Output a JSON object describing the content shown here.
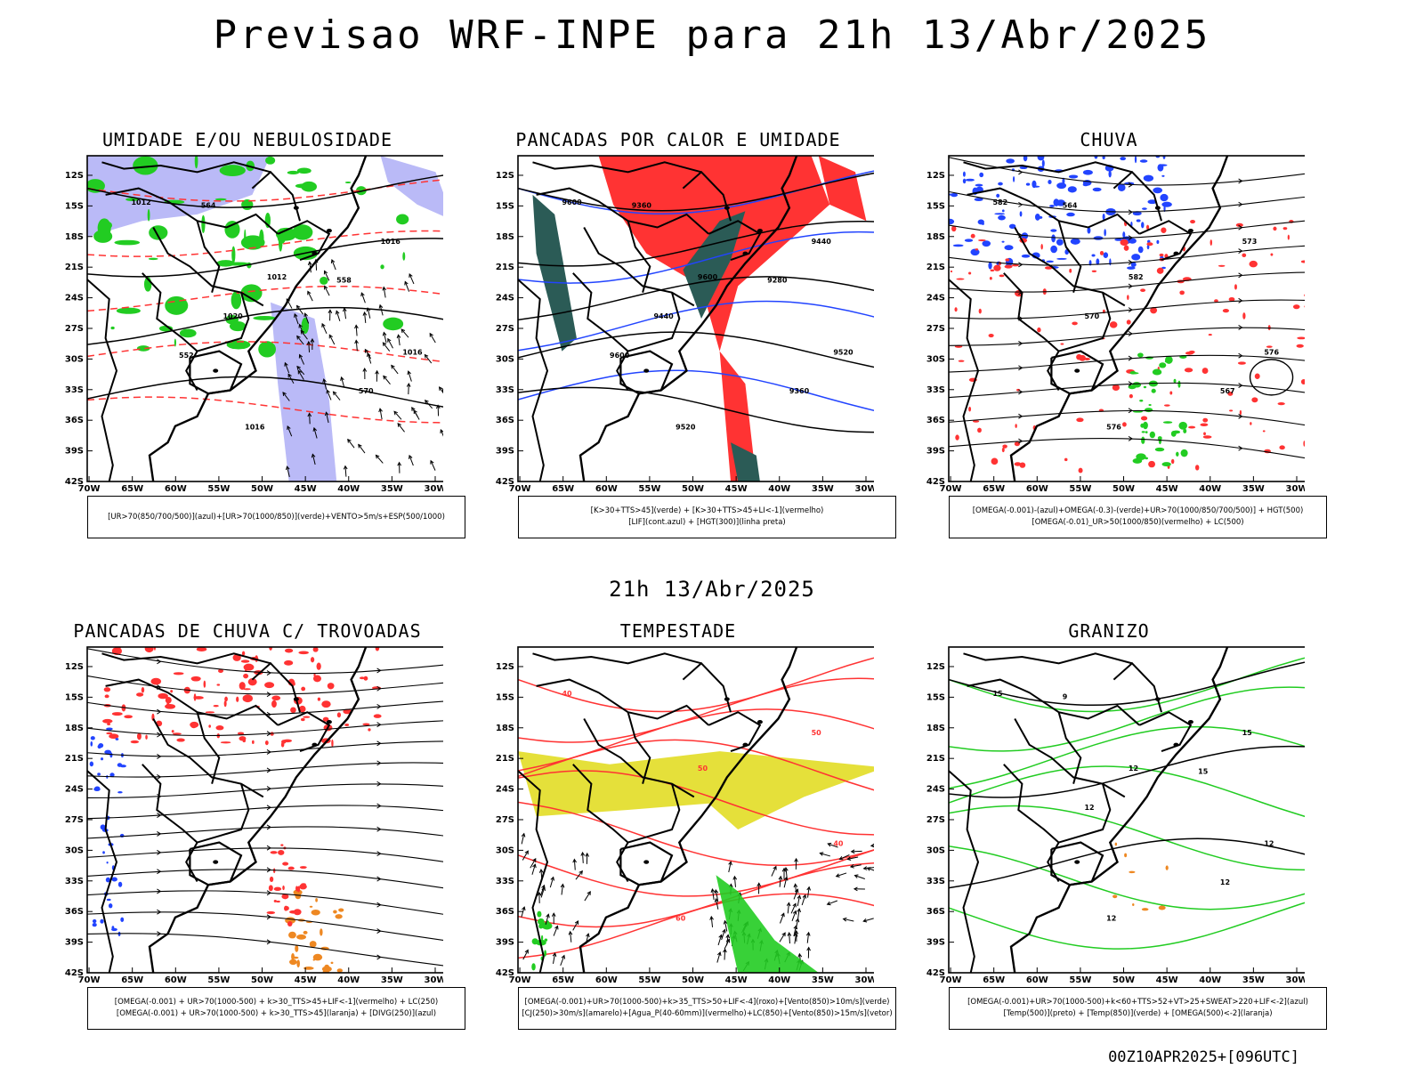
{
  "header": {
    "title": "Previsao WRF-INPE  para 21h 13/Abr/2025"
  },
  "middle": {
    "title": "21h 13/Abr/2025"
  },
  "footer": {
    "run_label": "00Z10APR2025+[096UTC]"
  },
  "axes": {
    "lat_labels": [
      "12S",
      "15S",
      "18S",
      "21S",
      "24S",
      "27S",
      "30S",
      "33S",
      "36S",
      "39S",
      "42S"
    ],
    "lon_labels": [
      "70W",
      "65W",
      "60W",
      "55W",
      "50W",
      "45W",
      "40W",
      "35W",
      "30W"
    ]
  },
  "colors": {
    "humidity_blue": "#a9a9f5",
    "green": "#22cc22",
    "red": "#ff3333",
    "dark_teal": "#2b5b56",
    "blue_line": "#2244ff",
    "yellow": "#e5e03a",
    "orange": "#ee8822"
  },
  "panels": [
    {
      "id": "umidade",
      "title": "UMIDADE E/OU NEBULOSIDADE",
      "legend": [
        "[UR>70(850/700/500)](azul)+[UR>70(1000/850)](verde)+VENTO>5m/s+ESP(500/1000)"
      ],
      "contour_labels": [
        "1012",
        "1012",
        "1016",
        "1016",
        "1016",
        "1020",
        "570",
        "564",
        "558",
        "552"
      ]
    },
    {
      "id": "pancadas_calor",
      "title": "PANCADAS POR CALOR E UMIDADE",
      "legend": [
        "[K>30+TTS>45](verde) + [K>30+TTS>45+LI<-1](vermelho)",
        "[LIF](cont.azul) + [HGT(300)](linha preta)"
      ],
      "contour_labels": [
        "9600",
        "9600",
        "9520",
        "9520",
        "9440",
        "9440",
        "9360",
        "9360",
        "9280",
        "9600"
      ]
    },
    {
      "id": "chuva",
      "title": "CHUVA",
      "legend": [
        "[OMEGA(-0.001)-(azul)+OMEGA(-0.3)-(verde)+UR>70(1000/850/700/500)] + HGT(500)",
        "[OMEGA(-0.01)_UR>50(1000/850)(vermelho) + LC(500)"
      ],
      "contour_labels": [
        "582",
        "582",
        "576",
        "576",
        "573",
        "570",
        "567",
        "564"
      ]
    },
    {
      "id": "pancadas_trovoadas",
      "title": "PANCADAS DE CHUVA C/ TROVOADAS",
      "legend": [
        "[OMEGA(-0.001) + UR>70(1000-500) + k>30_TTS>45+LIF<-1](vermelho) + LC(250)",
        "[OMEGA(-0.001) + UR>70(1000-500) + k>30_TTS>45](laranja) + [DIVG(250)](azul)"
      ],
      "contour_labels": []
    },
    {
      "id": "tempestade",
      "title": "TEMPESTADE",
      "legend": [
        "[OMEGA(-0.001)+UR>70(1000-500)+k>35_TTS>50+LIF<-4](roxo)+[Vento(850)>10m/s](verde)",
        "[CJ(250)>30m/s](amarelo)+[Agua_P(40-60mm)](vermelho)+LC(850)+[Vento(850)>15m/s](vetor)"
      ],
      "contour_labels": [
        "40",
        "50",
        "40",
        "60",
        "50"
      ]
    },
    {
      "id": "granizo",
      "title": "GRANIZO",
      "legend": [
        "[OMEGA(-0.001)+UR>70(1000-500)+k<60+TTS>52+VT>25+SWEAT>220+LIF<-2](azul)",
        "[Temp(500)](preto) + [Temp(850)](verde) + [OMEGA(500)<-2](laranja)"
      ],
      "contour_labels": [
        "15",
        "12",
        "12",
        "12",
        "15",
        "12",
        "12",
        "9",
        "15"
      ]
    }
  ]
}
